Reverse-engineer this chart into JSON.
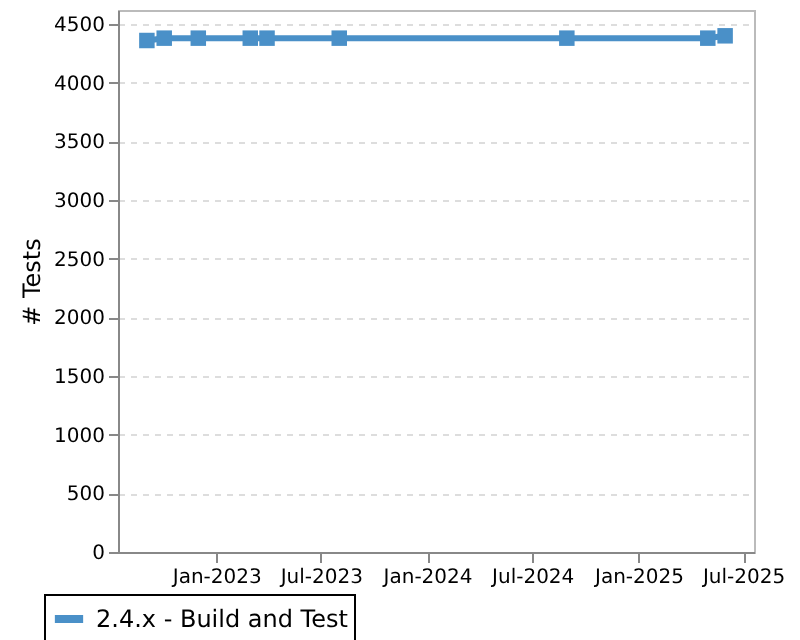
{
  "chart_data": {
    "type": "line",
    "ylabel": "# Tests",
    "x": [
      "2022-09-03",
      "2022-10-03",
      "2022-12-01",
      "2023-03-01",
      "2023-03-30",
      "2023-08-02",
      "2024-08-30",
      "2025-05-01",
      "2025-05-31"
    ],
    "series": [
      {
        "name": "2.4.x - Build and Test",
        "color": "#4a90c8",
        "values": [
          4360,
          4380,
          4380,
          4380,
          4380,
          4380,
          4380,
          4380,
          4400
        ]
      }
    ],
    "xlim": [
      "2022-07-15",
      "2025-07-20"
    ],
    "xticks": [
      {
        "value": "2023-01",
        "label": "Jan-2023"
      },
      {
        "value": "2023-07",
        "label": "Jul-2023"
      },
      {
        "value": "2024-01",
        "label": "Jan-2024"
      },
      {
        "value": "2024-07",
        "label": "Jul-2024"
      },
      {
        "value": "2025-01",
        "label": "Jan-2025"
      },
      {
        "value": "2025-07",
        "label": "Jul-2025"
      }
    ],
    "ylim": [
      0,
      4620
    ],
    "yticks": [
      0,
      500,
      1000,
      1500,
      2000,
      2500,
      3000,
      3500,
      4000,
      4500
    ],
    "grid": "y",
    "legend": "bottom",
    "marker": "square",
    "line_style": "solid"
  }
}
